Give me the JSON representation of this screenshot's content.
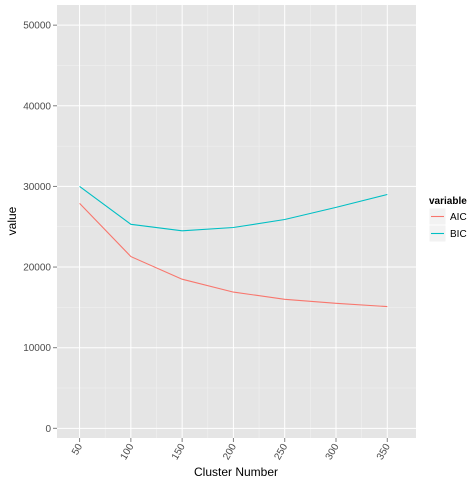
{
  "chart_data": {
    "type": "line",
    "xlabel": "Cluster Number",
    "ylabel": "value",
    "x": [
      50,
      100,
      150,
      200,
      250,
      300,
      350
    ],
    "xlim": [
      28,
      378
    ],
    "ylim": [
      -1200,
      52500
    ],
    "x_ticks": [
      "50",
      "100",
      "150",
      "200",
      "250",
      "300",
      "350"
    ],
    "y_ticks": [
      "0",
      "10000",
      "20000",
      "30000",
      "40000",
      "50000"
    ],
    "legend": {
      "title": "variable",
      "position": "right"
    },
    "grid": true,
    "series": [
      {
        "name": "AIC",
        "color": "#F8766D",
        "values": [
          27900,
          21300,
          18500,
          16900,
          16000,
          15500,
          15100
        ]
      },
      {
        "name": "BIC",
        "color": "#00BFC4",
        "values": [
          30000,
          25300,
          24500,
          24900,
          25900,
          27400,
          29000
        ]
      }
    ]
  }
}
